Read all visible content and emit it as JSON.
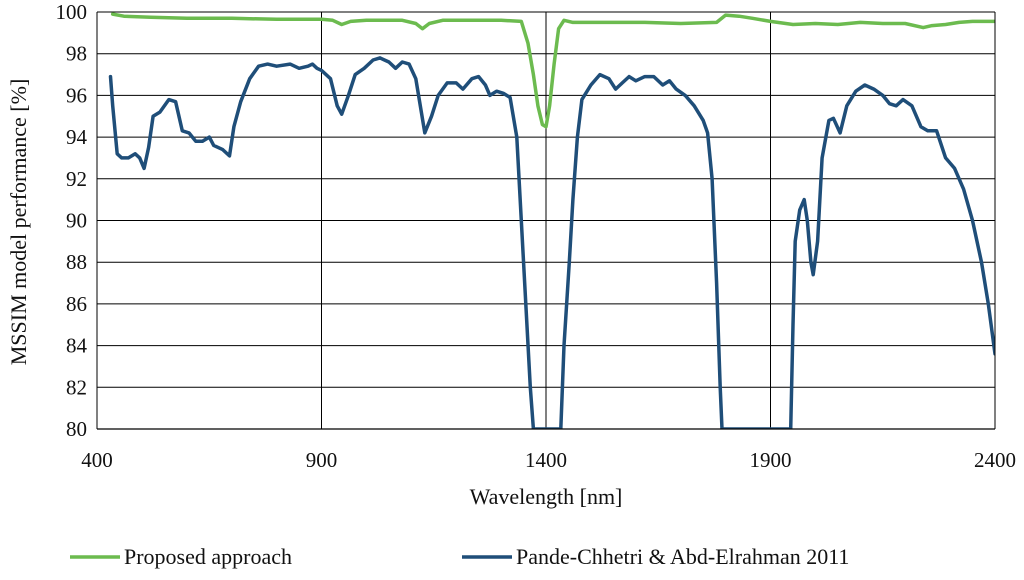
{
  "chart_data": {
    "type": "line",
    "title": "",
    "xlabel": "Wavelength [nm]",
    "ylabel": "MSSIM model performance [%]",
    "xlim": [
      400,
      2400
    ],
    "ylim": [
      80,
      100
    ],
    "x_ticks": [
      400,
      900,
      1400,
      1900,
      2400
    ],
    "x_tick_labels": [
      "400",
      "900",
      "1400",
      "1900",
      "2400"
    ],
    "y_ticks": [
      80,
      82,
      84,
      86,
      88,
      90,
      92,
      94,
      96,
      98,
      100
    ],
    "y_tick_labels": [
      "80",
      "82",
      "84",
      "86",
      "88",
      "90",
      "92",
      "94",
      "96",
      "98",
      "100"
    ],
    "grid": "horizontal lines at every y tick; vertical lines at x ticks",
    "legend_position": "bottom",
    "colors": {
      "green": "#6cbb4f",
      "navy": "#1f4e79",
      "grid": "#000000"
    },
    "series": [
      {
        "name": "Proposed approach",
        "color": "#6cbb4f",
        "points": [
          [
            435,
            99.9
          ],
          [
            460,
            99.8
          ],
          [
            520,
            99.75
          ],
          [
            600,
            99.7
          ],
          [
            700,
            99.7
          ],
          [
            800,
            99.65
          ],
          [
            900,
            99.65
          ],
          [
            925,
            99.6
          ],
          [
            945,
            99.4
          ],
          [
            965,
            99.55
          ],
          [
            1000,
            99.6
          ],
          [
            1080,
            99.6
          ],
          [
            1110,
            99.45
          ],
          [
            1125,
            99.2
          ],
          [
            1140,
            99.45
          ],
          [
            1170,
            99.6
          ],
          [
            1250,
            99.6
          ],
          [
            1300,
            99.6
          ],
          [
            1345,
            99.55
          ],
          [
            1360,
            98.5
          ],
          [
            1372,
            97.0
          ],
          [
            1382,
            95.5
          ],
          [
            1392,
            94.6
          ],
          [
            1400,
            94.5
          ],
          [
            1408,
            95.5
          ],
          [
            1418,
            97.5
          ],
          [
            1428,
            99.2
          ],
          [
            1440,
            99.6
          ],
          [
            1460,
            99.5
          ],
          [
            1540,
            99.5
          ],
          [
            1620,
            99.5
          ],
          [
            1700,
            99.45
          ],
          [
            1780,
            99.5
          ],
          [
            1800,
            99.85
          ],
          [
            1830,
            99.8
          ],
          [
            1860,
            99.7
          ],
          [
            1900,
            99.55
          ],
          [
            1950,
            99.4
          ],
          [
            2000,
            99.45
          ],
          [
            2050,
            99.4
          ],
          [
            2100,
            99.5
          ],
          [
            2150,
            99.45
          ],
          [
            2200,
            99.45
          ],
          [
            2240,
            99.25
          ],
          [
            2260,
            99.35
          ],
          [
            2290,
            99.4
          ],
          [
            2320,
            99.5
          ],
          [
            2350,
            99.55
          ],
          [
            2400,
            99.55
          ]
        ]
      },
      {
        "name": "Pande-Chhetri & Abd-Elrahman 2011",
        "color": "#1f4e79",
        "points": [
          [
            430,
            96.9
          ],
          [
            435,
            95.5
          ],
          [
            445,
            93.2
          ],
          [
            455,
            93.0
          ],
          [
            470,
            93.0
          ],
          [
            485,
            93.2
          ],
          [
            495,
            93.0
          ],
          [
            505,
            92.5
          ],
          [
            515,
            93.5
          ],
          [
            525,
            95.0
          ],
          [
            540,
            95.2
          ],
          [
            560,
            95.8
          ],
          [
            575,
            95.7
          ],
          [
            590,
            94.3
          ],
          [
            605,
            94.2
          ],
          [
            620,
            93.8
          ],
          [
            635,
            93.8
          ],
          [
            650,
            94.0
          ],
          [
            660,
            93.6
          ],
          [
            680,
            93.4
          ],
          [
            695,
            93.1
          ],
          [
            705,
            94.5
          ],
          [
            720,
            95.7
          ],
          [
            740,
            96.8
          ],
          [
            760,
            97.4
          ],
          [
            780,
            97.5
          ],
          [
            800,
            97.4
          ],
          [
            830,
            97.5
          ],
          [
            850,
            97.3
          ],
          [
            870,
            97.4
          ],
          [
            880,
            97.5
          ],
          [
            890,
            97.3
          ],
          [
            900,
            97.2
          ],
          [
            920,
            96.8
          ],
          [
            935,
            95.5
          ],
          [
            945,
            95.1
          ],
          [
            960,
            96.0
          ],
          [
            975,
            97.0
          ],
          [
            995,
            97.3
          ],
          [
            1015,
            97.7
          ],
          [
            1030,
            97.8
          ],
          [
            1050,
            97.6
          ],
          [
            1065,
            97.3
          ],
          [
            1080,
            97.6
          ],
          [
            1095,
            97.5
          ],
          [
            1110,
            96.8
          ],
          [
            1120,
            95.5
          ],
          [
            1130,
            94.2
          ],
          [
            1145,
            95.0
          ],
          [
            1160,
            96.0
          ],
          [
            1180,
            96.6
          ],
          [
            1200,
            96.6
          ],
          [
            1215,
            96.3
          ],
          [
            1235,
            96.8
          ],
          [
            1250,
            96.9
          ],
          [
            1265,
            96.5
          ],
          [
            1275,
            96.0
          ],
          [
            1290,
            96.2
          ],
          [
            1305,
            96.1
          ],
          [
            1320,
            95.9
          ],
          [
            1335,
            94.0
          ],
          [
            1345,
            90.0
          ],
          [
            1355,
            86.0
          ],
          [
            1365,
            82.0
          ],
          [
            1372,
            80.0
          ],
          [
            1433,
            80.0
          ],
          [
            1440,
            84.0
          ],
          [
            1452,
            88.0
          ],
          [
            1460,
            91.0
          ],
          [
            1470,
            94.0
          ],
          [
            1480,
            95.8
          ],
          [
            1500,
            96.5
          ],
          [
            1520,
            97.0
          ],
          [
            1540,
            96.8
          ],
          [
            1555,
            96.3
          ],
          [
            1570,
            96.6
          ],
          [
            1585,
            96.9
          ],
          [
            1600,
            96.7
          ],
          [
            1620,
            96.9
          ],
          [
            1640,
            96.9
          ],
          [
            1660,
            96.5
          ],
          [
            1675,
            96.7
          ],
          [
            1690,
            96.3
          ],
          [
            1710,
            96.0
          ],
          [
            1730,
            95.5
          ],
          [
            1750,
            94.8
          ],
          [
            1760,
            94.2
          ],
          [
            1770,
            92.0
          ],
          [
            1780,
            87.0
          ],
          [
            1788,
            82.0
          ],
          [
            1792,
            80.0
          ],
          [
            1945,
            80.0
          ],
          [
            1950,
            85.0
          ],
          [
            1955,
            89.0
          ],
          [
            1965,
            90.5
          ],
          [
            1975,
            91.0
          ],
          [
            1982,
            90.0
          ],
          [
            1990,
            88.0
          ],
          [
            1995,
            87.4
          ],
          [
            2005,
            89.0
          ],
          [
            2015,
            93.0
          ],
          [
            2030,
            94.8
          ],
          [
            2040,
            94.9
          ],
          [
            2055,
            94.2
          ],
          [
            2070,
            95.5
          ],
          [
            2090,
            96.2
          ],
          [
            2110,
            96.5
          ],
          [
            2130,
            96.3
          ],
          [
            2150,
            96.0
          ],
          [
            2165,
            95.6
          ],
          [
            2180,
            95.5
          ],
          [
            2195,
            95.8
          ],
          [
            2215,
            95.5
          ],
          [
            2235,
            94.5
          ],
          [
            2250,
            94.3
          ],
          [
            2270,
            94.3
          ],
          [
            2290,
            93.0
          ],
          [
            2310,
            92.5
          ],
          [
            2330,
            91.5
          ],
          [
            2350,
            90.0
          ],
          [
            2370,
            88.0
          ],
          [
            2385,
            86.0
          ],
          [
            2400,
            83.6
          ]
        ]
      }
    ]
  }
}
